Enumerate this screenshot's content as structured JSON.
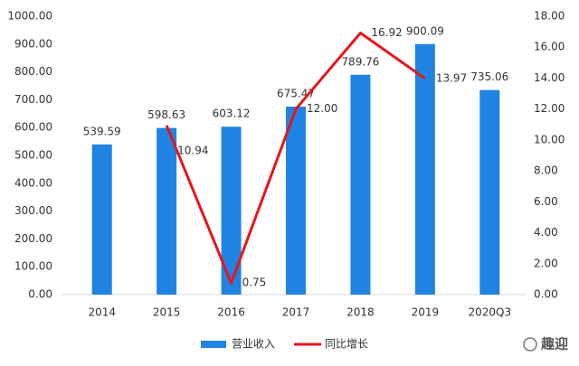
{
  "chart_data": {
    "type": "bar",
    "categories": [
      "2014",
      "2015",
      "2016",
      "2017",
      "2018",
      "2019",
      "2020Q3"
    ],
    "series": [
      {
        "name": "营业收入",
        "type": "bar",
        "color": "#1f83e2",
        "values": [
          539.59,
          598.63,
          603.12,
          675.47,
          789.76,
          900.09,
          735.06
        ]
      },
      {
        "name": "同比增长",
        "type": "line",
        "axis": "y2",
        "color": "#e8141b",
        "values": [
          null,
          10.94,
          0.75,
          12.0,
          16.92,
          13.97,
          null
        ],
        "value_labels": [
          null,
          "10.94",
          "0.75",
          "12.00",
          "16.92",
          "13.97",
          null
        ]
      }
    ],
    "ylim": [
      0,
      1000
    ],
    "yticks": [
      {
        "value": 0,
        "label": "0.00"
      },
      {
        "value": 100,
        "label": "100.00"
      },
      {
        "value": 200,
        "label": "200.00"
      },
      {
        "value": 300,
        "label": "300.00"
      },
      {
        "value": 400,
        "label": "400.00"
      },
      {
        "value": 500,
        "label": "500.00"
      },
      {
        "value": 600,
        "label": "600.00"
      },
      {
        "value": 700,
        "label": "700.00"
      },
      {
        "value": 800,
        "label": "800.00"
      },
      {
        "value": 900,
        "label": "900.00"
      },
      {
        "value": 1000,
        "label": "1000.00"
      }
    ],
    "y2lim": [
      0,
      18
    ],
    "y2ticks": [
      {
        "value": 0,
        "label": "0.00"
      },
      {
        "value": 2,
        "label": "2.00"
      },
      {
        "value": 4,
        "label": "4.00"
      },
      {
        "value": 6,
        "label": "6.00"
      },
      {
        "value": 8,
        "label": "8.00"
      },
      {
        "value": 10,
        "label": "10.00"
      },
      {
        "value": 12,
        "label": "12.00"
      },
      {
        "value": 14,
        "label": "14.00"
      },
      {
        "value": 16,
        "label": "16.00"
      },
      {
        "value": 18,
        "label": "18.00"
      }
    ],
    "grid": false,
    "legend": "bottom",
    "watermark": "趣迎"
  }
}
